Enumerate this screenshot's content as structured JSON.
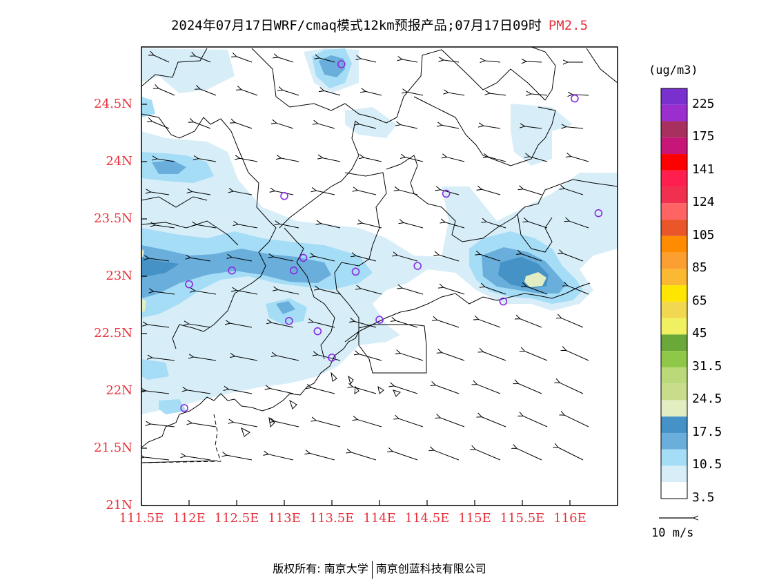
{
  "title": {
    "text": "2024年07月17日WRF/cmaq模式12km预报产品;07月17日09时",
    "pollutant": "PM2.5"
  },
  "axes": {
    "lat_labels": [
      "24.5N",
      "24N",
      "23.5N",
      "23N",
      "22.5N",
      "22N",
      "21.5N",
      "21N"
    ],
    "lat_values": [
      24.5,
      24,
      23.5,
      23,
      22.5,
      22,
      21.5,
      21
    ],
    "lon_labels": [
      "111.5E",
      "112E",
      "112.5E",
      "113E",
      "113.5E",
      "114E",
      "114.5E",
      "115E",
      "115.5E",
      "116E"
    ],
    "lon_values": [
      111.5,
      112,
      112.5,
      113,
      113.5,
      114,
      114.5,
      115,
      115.5,
      116
    ],
    "lon_range": [
      111.5,
      116.5
    ],
    "lat_range": [
      21.0,
      25.0
    ]
  },
  "colorbar": {
    "unit": "(ug/m3)",
    "labels": [
      "225",
      "175",
      "141",
      "124",
      "105",
      "85",
      "65",
      "45",
      "31.5",
      "24.5",
      "17.5",
      "10.5",
      "3.5"
    ],
    "colors_top_to_bottom": [
      "#7a2fcf",
      "#9b2ecf",
      "#a8305e",
      "#c8157a",
      "#ff0000",
      "#ff1f4f",
      "#f0304e",
      "#ff6464",
      "#e8562a",
      "#ff8c00",
      "#fba030",
      "#fbb832",
      "#ffe600",
      "#f2d850",
      "#f0f060",
      "#6aa839",
      "#8fc848",
      "#bcd97a",
      "#c8dc8c",
      "#e2eec2",
      "#4592c6",
      "#6aaedc",
      "#a5dcf6",
      "#d7eef8",
      "#ffffff"
    ]
  },
  "wind_reference": {
    "label": "10 m/s"
  },
  "stations_lonlat": [
    [
      113.6,
      24.85
    ],
    [
      116.05,
      24.55
    ],
    [
      113.0,
      23.7
    ],
    [
      114.7,
      23.72
    ],
    [
      116.3,
      23.55
    ],
    [
      113.2,
      23.16
    ],
    [
      112.45,
      23.05
    ],
    [
      113.1,
      23.05
    ],
    [
      113.75,
      23.04
    ],
    [
      114.4,
      23.09
    ],
    [
      112.0,
      22.93
    ],
    [
      113.05,
      22.61
    ],
    [
      114.0,
      22.62
    ],
    [
      113.35,
      22.52
    ],
    [
      115.3,
      22.78
    ],
    [
      113.5,
      22.29
    ],
    [
      111.95,
      21.85
    ]
  ],
  "copyright": {
    "text_left": "版权所有: 南京大学",
    "text_right": "南京创蓝科技有限公司"
  }
}
